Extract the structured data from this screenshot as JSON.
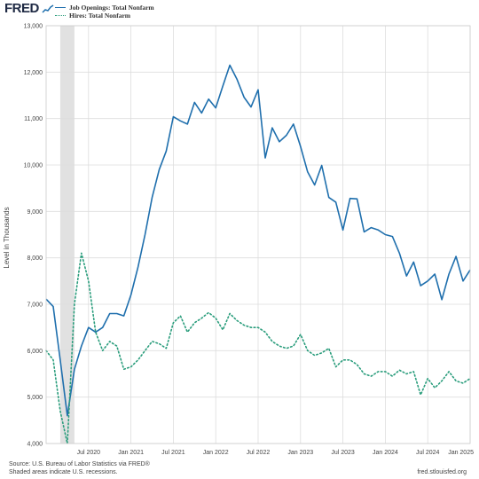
{
  "brand": {
    "name": "FRED",
    "mark_icon": "fred-line-chart-icon"
  },
  "colors": {
    "openings": "#1f6fad",
    "hires": "#2a9d7c",
    "recession": "#e1e1e1",
    "grid": "#dddddd",
    "plot_bg": "#ffffff"
  },
  "chart_data": {
    "type": "line",
    "title": "",
    "xlabel": "",
    "ylabel": "Level in Thousands",
    "ylim": [
      4000,
      13000
    ],
    "yticks": [
      4000,
      5000,
      6000,
      7000,
      8000,
      9000,
      10000,
      11000,
      12000,
      13000
    ],
    "ytick_labels": [
      "4,000",
      "5,000",
      "6,000",
      "7,000",
      "8,000",
      "9,000",
      "10,000",
      "11,000",
      "12,000",
      "13,000"
    ],
    "xlim": [
      "2020-01",
      "2025-01"
    ],
    "xticks": [
      "2020-07",
      "2021-01",
      "2021-07",
      "2022-01",
      "2022-07",
      "2023-01",
      "2023-07",
      "2024-01",
      "2024-07",
      "2025-01"
    ],
    "xtick_labels": [
      "Jul 2020",
      "Jan 2021",
      "Jul 2021",
      "Jan 2022",
      "Jul 2022",
      "Jan 2023",
      "Jul 2023",
      "Jan 2024",
      "Jul 2024",
      "Jan 2025"
    ],
    "grid": true,
    "legend_position": "top-left",
    "recession": {
      "start": "2020-03",
      "end": "2020-04"
    },
    "x": [
      "2020-01",
      "2020-02",
      "2020-03",
      "2020-04",
      "2020-05",
      "2020-06",
      "2020-07",
      "2020-08",
      "2020-09",
      "2020-10",
      "2020-11",
      "2020-12",
      "2021-01",
      "2021-02",
      "2021-03",
      "2021-04",
      "2021-05",
      "2021-06",
      "2021-07",
      "2021-08",
      "2021-09",
      "2021-10",
      "2021-11",
      "2021-12",
      "2022-01",
      "2022-02",
      "2022-03",
      "2022-04",
      "2022-05",
      "2022-06",
      "2022-07",
      "2022-08",
      "2022-09",
      "2022-10",
      "2022-11",
      "2022-12",
      "2023-01",
      "2023-02",
      "2023-03",
      "2023-04",
      "2023-05",
      "2023-06",
      "2023-07",
      "2023-08",
      "2023-09",
      "2023-10",
      "2023-11",
      "2023-12",
      "2024-01",
      "2024-02",
      "2024-03",
      "2024-04",
      "2024-05",
      "2024-06",
      "2024-07",
      "2024-08",
      "2024-09",
      "2024-10",
      "2024-11",
      "2024-12",
      "2025-01"
    ],
    "series": [
      {
        "name": "Job Openings: Total Nonfarm",
        "style": "solid",
        "values": [
          7110,
          6950,
          5800,
          4600,
          5600,
          6100,
          6500,
          6400,
          6500,
          6800,
          6800,
          6750,
          7200,
          7800,
          8500,
          9300,
          9900,
          10300,
          11040,
          10950,
          10880,
          11350,
          11120,
          11420,
          11230,
          11700,
          12150,
          11850,
          11460,
          11250,
          11620,
          10150,
          10800,
          10500,
          10640,
          10880,
          10400,
          9850,
          9570,
          9990,
          9300,
          9200,
          8600,
          9280,
          9270,
          8560,
          8650,
          8600,
          8500,
          8460,
          8100,
          7610,
          7910,
          7400,
          7500,
          7650,
          7100,
          7650,
          8030,
          7500,
          7740
        ]
      },
      {
        "name": "Hires: Total Nonfarm",
        "style": "dotted",
        "values": [
          6000,
          5800,
          4700,
          3750,
          7000,
          8100,
          7500,
          6400,
          6000,
          6200,
          6100,
          5600,
          5650,
          5800,
          6000,
          6200,
          6150,
          6050,
          6600,
          6750,
          6400,
          6600,
          6700,
          6820,
          6700,
          6450,
          6800,
          6650,
          6550,
          6500,
          6500,
          6400,
          6200,
          6100,
          6050,
          6100,
          6350,
          6000,
          5900,
          5950,
          6050,
          5650,
          5800,
          5800,
          5700,
          5500,
          5450,
          5550,
          5550,
          5450,
          5580,
          5500,
          5550,
          5050,
          5400,
          5200,
          5350,
          5550,
          5350,
          5300,
          5400
        ]
      }
    ]
  },
  "footer": {
    "source": "Source: U.S. Bureau of Labor Statistics via FRED®",
    "note": "Shaded areas indicate U.S. recessions.",
    "url": "fred.stlouisfed.org"
  }
}
